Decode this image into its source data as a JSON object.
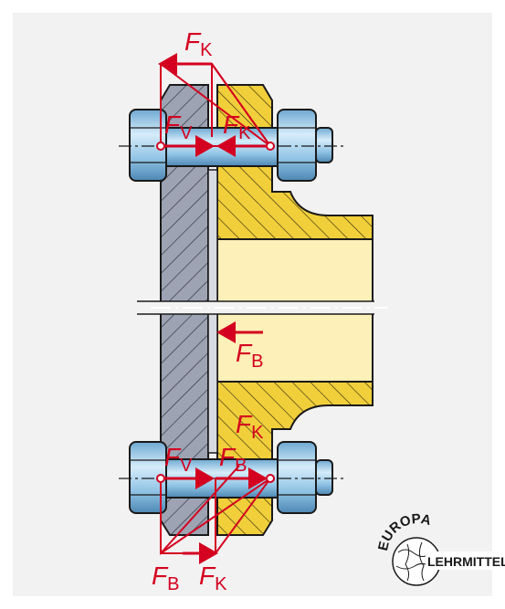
{
  "labels": {
    "fk_top": {
      "main": "F",
      "sub": "K"
    },
    "fv_top": {
      "main": "F",
      "sub": "V"
    },
    "fk_top2": {
      "main": "F",
      "sub": "K"
    },
    "fb_mid": {
      "main": "F",
      "sub": "B"
    },
    "fk_low": {
      "main": "F",
      "sub": "K"
    },
    "fv_low": {
      "main": "F",
      "sub": "V"
    },
    "fb_low": {
      "main": "F",
      "sub": "B"
    },
    "fb_bot": {
      "main": "F",
      "sub": "B"
    },
    "fk_bot": {
      "main": "F",
      "sub": "K"
    }
  },
  "logo": {
    "arc_text": "EUROPA",
    "text": "LEHRMITTEL"
  },
  "colors": {
    "background": "#f2f2f2",
    "force": "#d4001f",
    "flange_left": "#9ea3b3",
    "flange_right": "#f1cf3b",
    "pipe": "#fdf0b8",
    "bolt": "#9ccbe8"
  }
}
